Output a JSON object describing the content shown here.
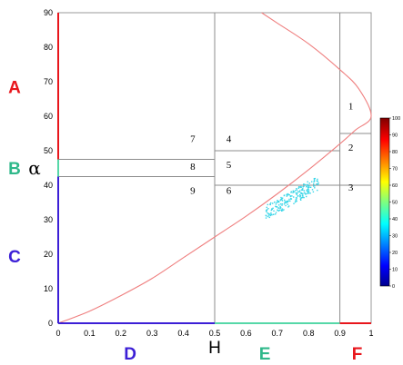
{
  "chart_data": {
    "type": "scatter",
    "title": "",
    "xlabel": "H",
    "ylabel": "α",
    "xlim": [
      0,
      1
    ],
    "ylim": [
      0,
      90
    ],
    "x_ticks": [
      "0",
      "0.1",
      "0.2",
      "0.3",
      "0.4",
      "0.5",
      "0.6",
      "0.7",
      "0.8",
      "0.9",
      "1"
    ],
    "y_ticks": [
      "0",
      "10",
      "20",
      "30",
      "40",
      "50",
      "60",
      "70",
      "80",
      "90"
    ],
    "zone_boundaries": {
      "H": [
        0.5,
        0.9
      ],
      "alpha_low_H": [
        42.5,
        47.5
      ],
      "alpha_mid_H": [
        40,
        50
      ],
      "alpha_high_H": [
        40,
        55
      ]
    },
    "feasibility_curve": {
      "description_of_points": "H vs alpha",
      "points": [
        [
          0,
          0
        ],
        [
          0.1,
          3.5
        ],
        [
          0.2,
          8
        ],
        [
          0.3,
          13
        ],
        [
          0.4,
          19
        ],
        [
          0.5,
          25
        ],
        [
          0.6,
          31
        ],
        [
          0.7,
          37.5
        ],
        [
          0.8,
          44.5
        ],
        [
          0.9,
          52
        ],
        [
          0.95,
          56
        ],
        [
          1,
          60
        ],
        [
          0.96,
          68
        ],
        [
          0.9,
          73.5
        ],
        [
          0.8,
          81
        ],
        [
          0.7,
          87
        ],
        [
          0.65,
          90
        ]
      ]
    },
    "zones": [
      {
        "label": "1",
        "H": 0.935,
        "alpha": 63
      },
      {
        "label": "2",
        "H": 0.935,
        "alpha": 51
      },
      {
        "label": "3",
        "H": 0.935,
        "alpha": 39.5
      },
      {
        "label": "4",
        "H": 0.545,
        "alpha": 53.5
      },
      {
        "label": "5",
        "H": 0.545,
        "alpha": 46
      },
      {
        "label": "6",
        "H": 0.545,
        "alpha": 38.5
      },
      {
        "label": "7",
        "H": 0.43,
        "alpha": 53.5
      },
      {
        "label": "8",
        "H": 0.43,
        "alpha": 45.5
      },
      {
        "label": "9",
        "H": 0.43,
        "alpha": 38.5
      }
    ],
    "region_labels": {
      "alpha_axis": [
        {
          "label": "A",
          "color": "#e8161c"
        },
        {
          "label": "B",
          "color": "#2fb88a"
        },
        {
          "label": "C",
          "color": "#3c1fd6"
        }
      ],
      "H_axis": [
        {
          "label": "D",
          "color": "#3c1fd6"
        },
        {
          "label": "E",
          "color": "#2fb88a"
        },
        {
          "label": "F",
          "color": "#e8161c"
        }
      ]
    },
    "axis_segment_colors": {
      "alpha_A": "#e8161c",
      "alpha_B": "#56d8a8",
      "alpha_C": "#3c1fd6",
      "H_D": "#3c1fd6",
      "H_E": "#56d8a8",
      "H_F": "#e8161c"
    },
    "curve_color": "#ef7f7f",
    "point_color": "#3ad6e8",
    "colorbar": {
      "min": 0,
      "max": 100,
      "ticks": [
        "0",
        "10",
        "20",
        "30",
        "40",
        "50",
        "60",
        "70",
        "80",
        "90",
        "100"
      ]
    },
    "cluster": {
      "H_range": [
        0.66,
        0.83
      ],
      "alpha_range": [
        30.5,
        42.5
      ],
      "approx_count": 220
    }
  }
}
